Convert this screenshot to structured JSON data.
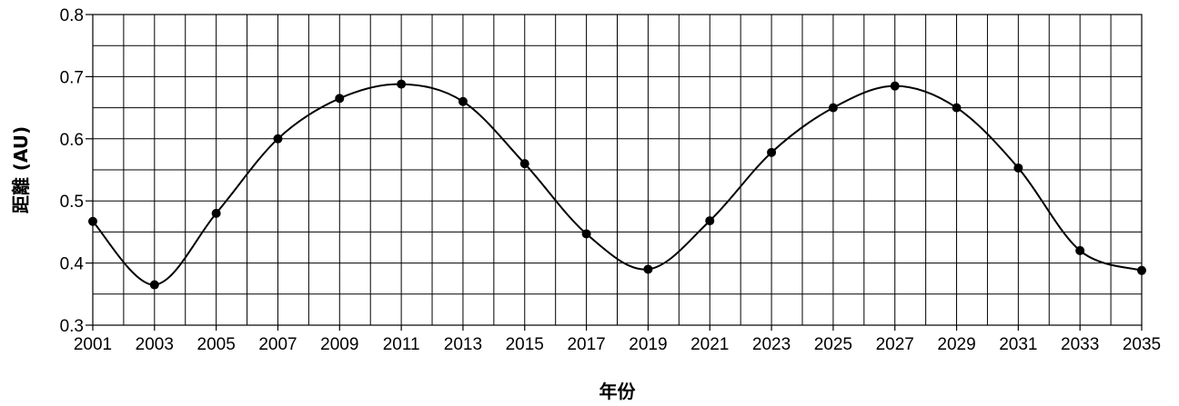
{
  "chart_data": {
    "type": "line",
    "title": "",
    "xlabel": "年份",
    "ylabel": "距離 (AU)",
    "xlim": [
      2001,
      2035
    ],
    "ylim": [
      0.3,
      0.8
    ],
    "x_ticks": [
      "2001",
      "2003",
      "2005",
      "2007",
      "2009",
      "2011",
      "2013",
      "2015",
      "2017",
      "2019",
      "2021",
      "2023",
      "2025",
      "2027",
      "2029",
      "2031",
      "2033",
      "2035"
    ],
    "y_ticks": [
      "0.3",
      "0.4",
      "0.5",
      "0.6",
      "0.7",
      "0.8"
    ],
    "grid": true,
    "legend": "none",
    "line_color": "#000000",
    "marker_color": "#000000",
    "series": [
      {
        "x": [
          2001,
          2003,
          2005,
          2007,
          2009,
          2011,
          2013,
          2015,
          2017,
          2019,
          2021,
          2023,
          2025,
          2027,
          2029,
          2031,
          2033,
          2035
        ],
        "values": [
          0.467,
          0.365,
          0.48,
          0.6,
          0.665,
          0.688,
          0.66,
          0.56,
          0.447,
          0.39,
          0.468,
          0.578,
          0.65,
          0.685,
          0.65,
          0.553,
          0.42,
          0.388
        ]
      }
    ]
  }
}
